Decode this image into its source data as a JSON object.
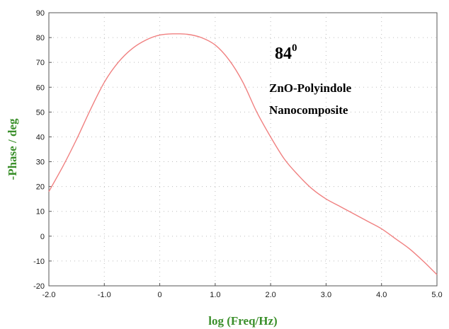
{
  "chart_data": {
    "type": "line",
    "xlabel": "log (Freq/Hz)",
    "ylabel": "-Phase / deg",
    "xlim": [
      -2.0,
      5.0
    ],
    "ylim": [
      -20,
      90
    ],
    "xticks": [
      "-2.0",
      "-1.0",
      "0",
      "1.0",
      "2.0",
      "3.0",
      "4.0",
      "5.0"
    ],
    "yticks": [
      "-20",
      "-10",
      "0",
      "10",
      "20",
      "30",
      "40",
      "50",
      "60",
      "70",
      "80",
      "90"
    ],
    "grid": "dotted",
    "line_color": "#f08080",
    "x": [
      -2.0,
      -1.75,
      -1.5,
      -1.25,
      -1.0,
      -0.75,
      -0.5,
      -0.25,
      0.0,
      0.25,
      0.5,
      0.75,
      1.0,
      1.25,
      1.5,
      1.75,
      2.0,
      2.25,
      2.5,
      2.75,
      3.0,
      3.25,
      3.5,
      3.75,
      4.0,
      4.25,
      4.5,
      4.75,
      5.0
    ],
    "y": [
      18,
      28,
      39,
      51,
      62,
      70,
      75.5,
      79,
      81,
      81.5,
      81.3,
      80,
      77,
      71,
      62,
      50,
      40,
      31,
      24.5,
      19,
      15,
      12,
      9,
      6,
      3,
      -1,
      -5,
      -10,
      -15.5
    ],
    "annotations": {
      "phase_value": "84",
      "phase_sup": "0",
      "line1": "ZnO-Polyindole",
      "line2": "Nanocomposite"
    }
  }
}
